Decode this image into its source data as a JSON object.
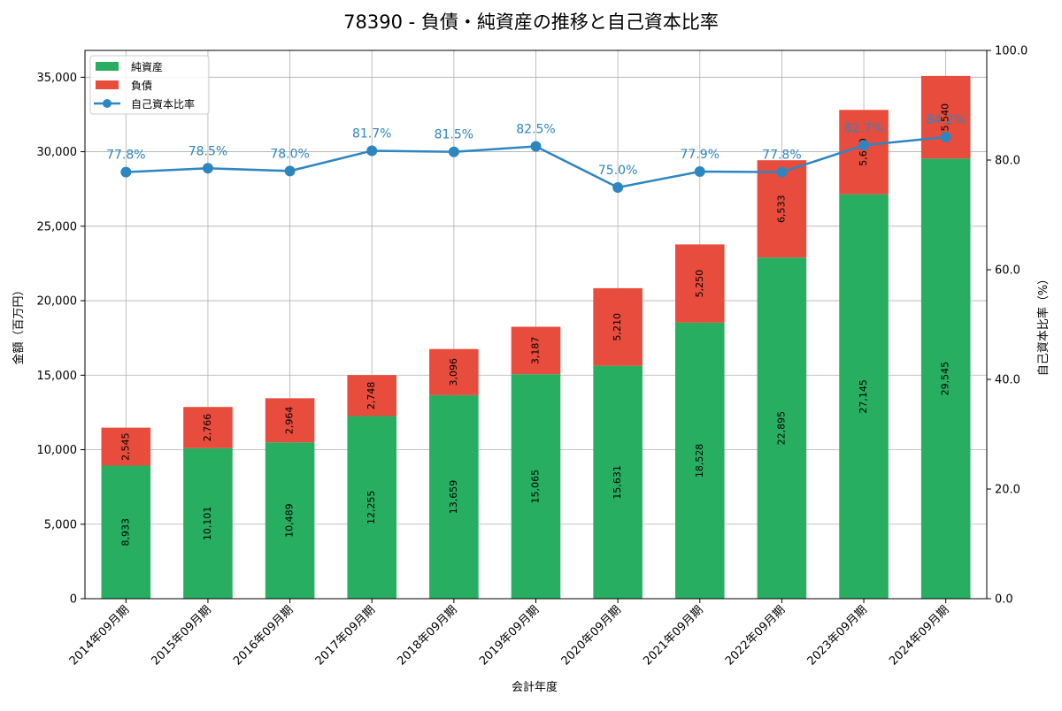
{
  "chart_data": {
    "type": "bar",
    "title": "78390 - 負債・純資産の推移と自己資本比率",
    "xlabel": "会計年度",
    "ylabel": "金額（百万円）",
    "y2label": "自己資本比率（%）",
    "categories": [
      "2014年09月期",
      "2015年09月期",
      "2016年09月期",
      "2017年09月期",
      "2018年09月期",
      "2019年09月期",
      "2020年09月期",
      "2021年09月期",
      "2022年09月期",
      "2023年09月期",
      "2024年09月期"
    ],
    "stacked": true,
    "series": [
      {
        "name": "純資産",
        "color": "#27ae60",
        "values": [
          8933,
          10101,
          10489,
          12255,
          13659,
          15065,
          15631,
          18528,
          22895,
          27145,
          29545
        ],
        "labels": [
          "8,933",
          "10,101",
          "10,489",
          "12,255",
          "13,659",
          "15,065",
          "15,631",
          "18,528",
          "22,895",
          "27,145",
          "29,545"
        ]
      },
      {
        "name": "負債",
        "color": "#e74c3c",
        "values": [
          2545,
          2766,
          2964,
          2748,
          3096,
          3187,
          5210,
          5250,
          6533,
          5660,
          5540
        ],
        "labels": [
          "2,545",
          "2,766",
          "2,964",
          "2,748",
          "3,096",
          "3,187",
          "5,210",
          "5,250",
          "6,533",
          "5,660",
          "5,540"
        ]
      }
    ],
    "line_series": {
      "name": "自己資本比率",
      "color": "#2e86c1",
      "axis": "right",
      "values": [
        77.8,
        78.5,
        78.0,
        81.7,
        81.5,
        82.5,
        75.0,
        77.9,
        77.8,
        82.7,
        84.2
      ],
      "labels": [
        "77.8%",
        "78.5%",
        "78.0%",
        "81.7%",
        "81.5%",
        "82.5%",
        "75.0%",
        "77.9%",
        "77.8%",
        "82.7%",
        "84.2%"
      ]
    },
    "ylim": [
      0,
      36800
    ],
    "y_ticks": [
      0,
      5000,
      10000,
      15000,
      20000,
      25000,
      30000,
      35000
    ],
    "y_tick_labels": [
      "0",
      "5,000",
      "10,000",
      "15,000",
      "20,000",
      "25,000",
      "30,000",
      "35,000"
    ],
    "y2lim": [
      0,
      100
    ],
    "y2_ticks": [
      0,
      20,
      40,
      60,
      80,
      100
    ],
    "y2_tick_labels": [
      "0.0",
      "20.0",
      "40.0",
      "60.0",
      "80.0",
      "100.0"
    ],
    "grid": true,
    "legend_position": "top-left"
  }
}
